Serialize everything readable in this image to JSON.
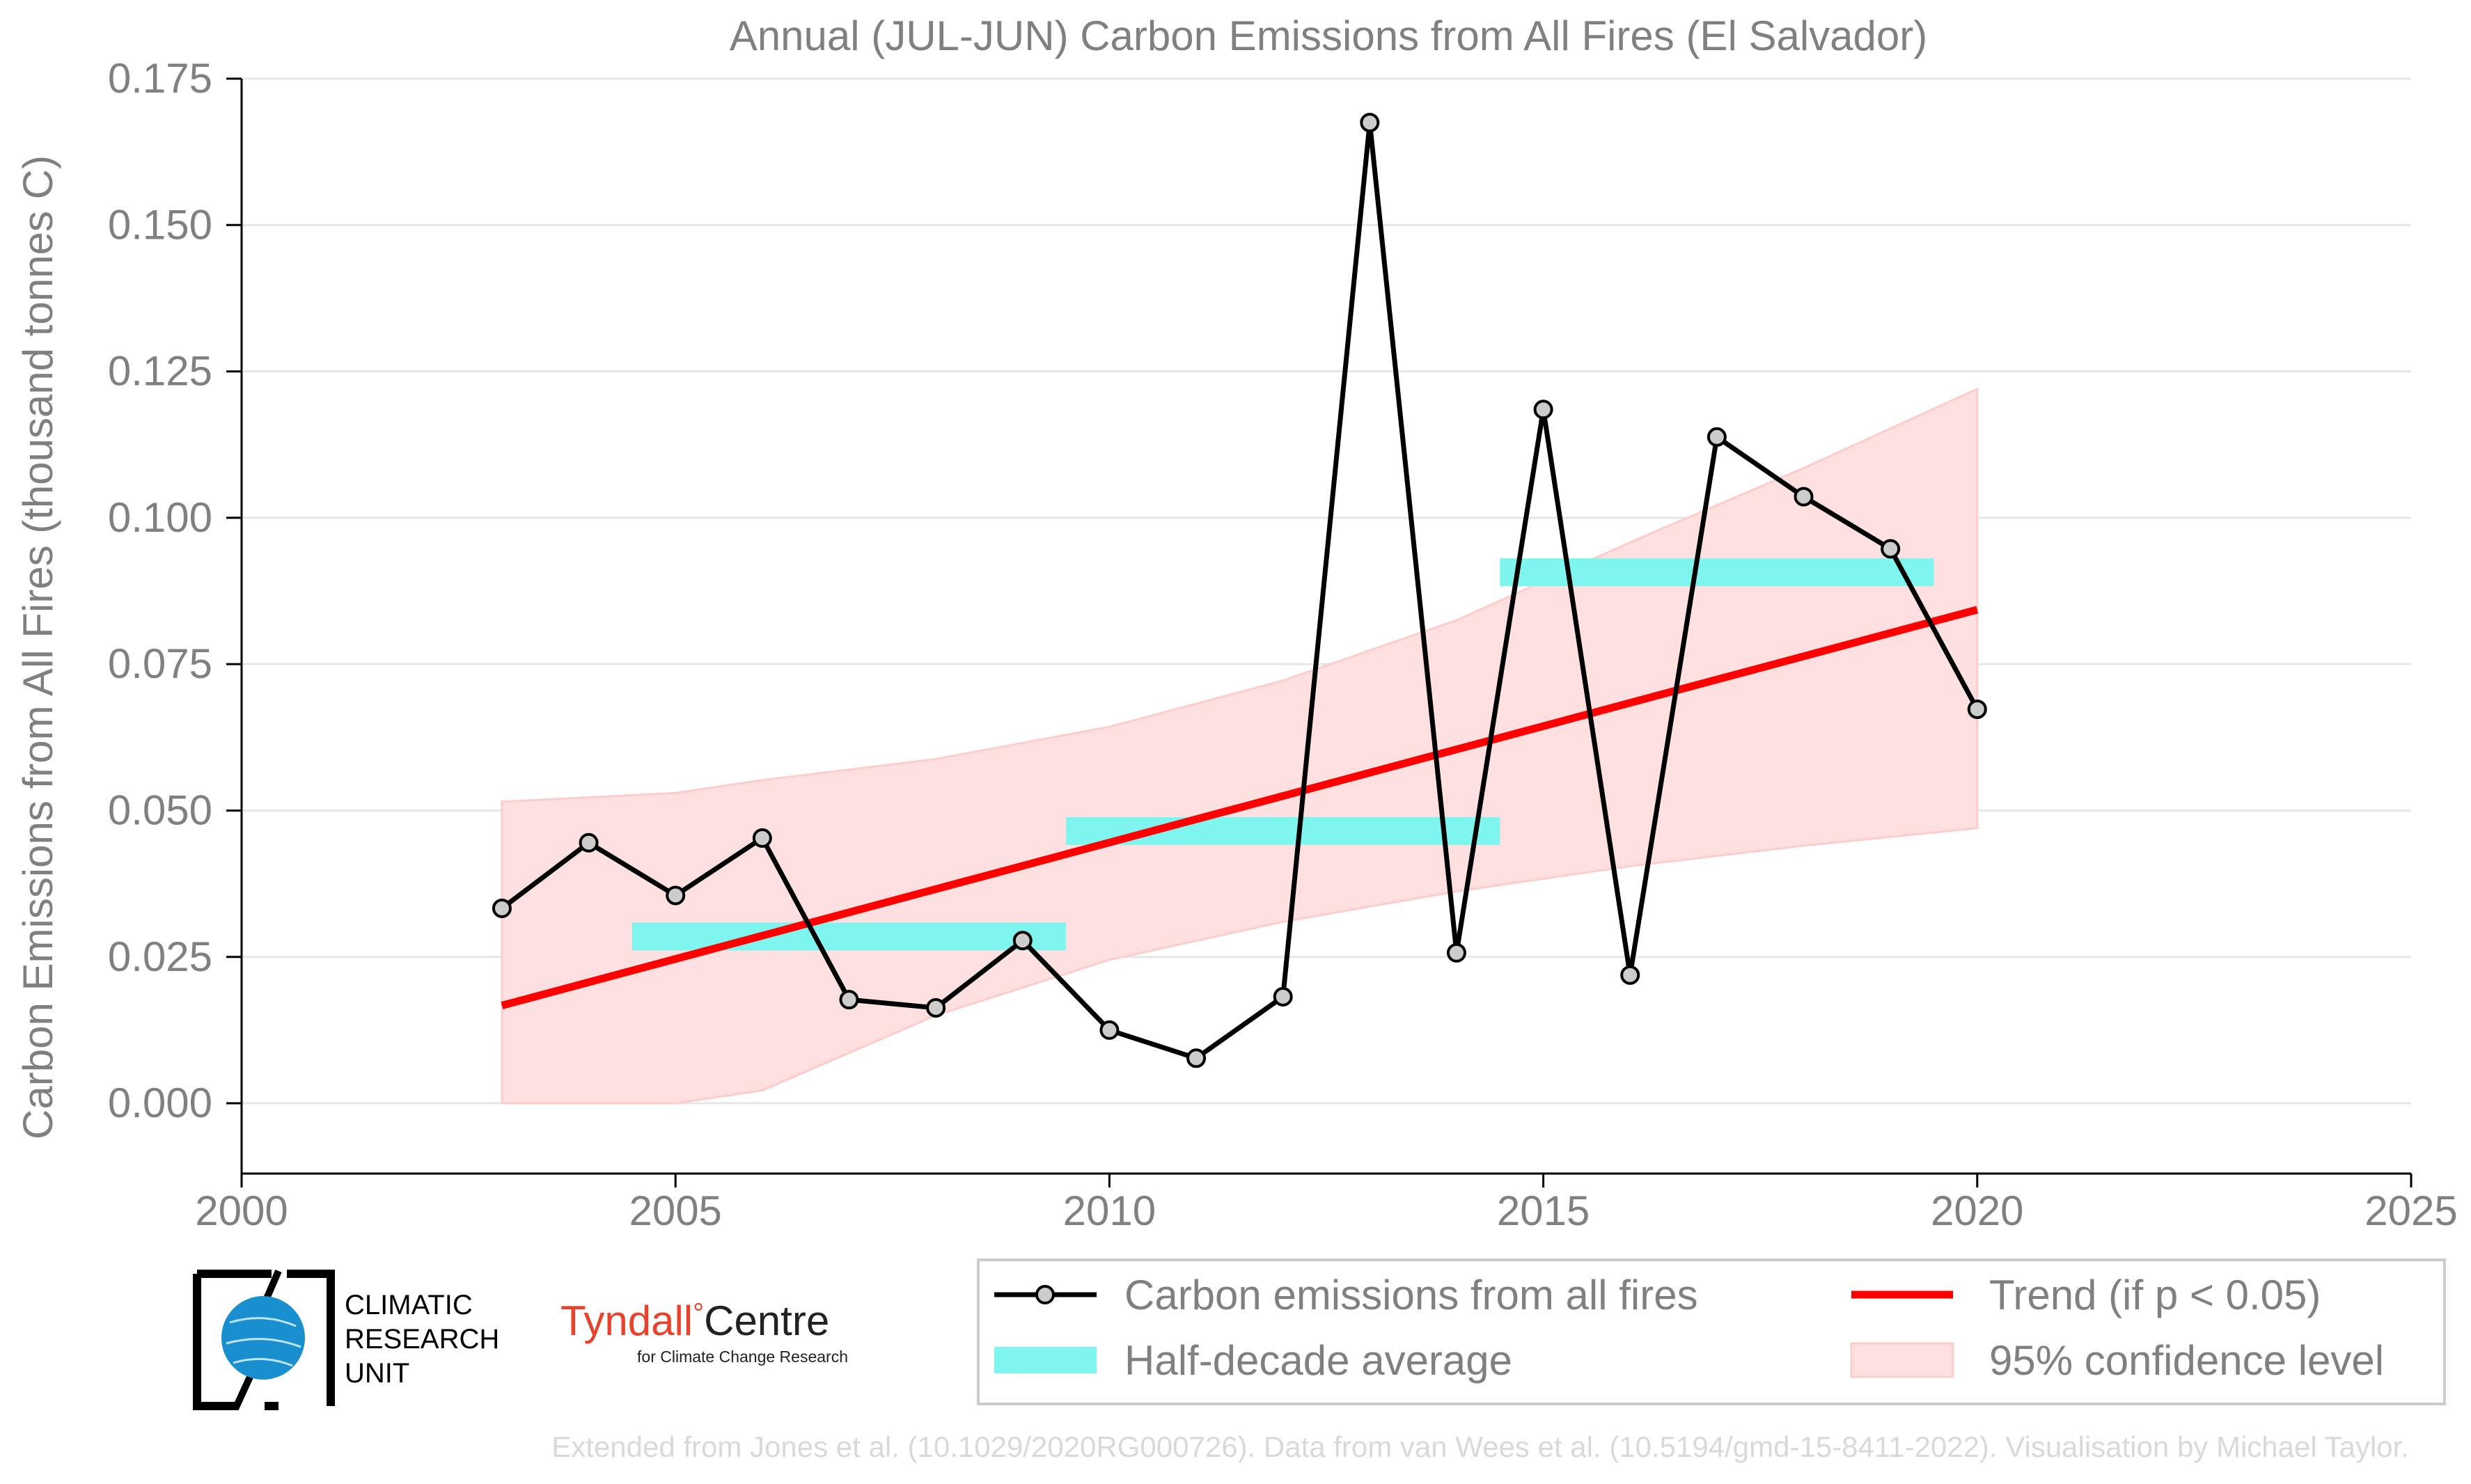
{
  "chart_data": {
    "type": "line",
    "title": "Annual (JUL-JUN) Carbon Emissions from All Fires (El Salvador)",
    "xlabel": "",
    "ylabel": "Carbon Emissions from All Fires (thousand tonnes C)",
    "xlim": [
      2000,
      2025
    ],
    "ylim": [
      -0.012,
      0.175
    ],
    "xticks": [
      2000,
      2005,
      2010,
      2015,
      2020,
      2025
    ],
    "yticks": [
      0.0,
      0.025,
      0.05,
      0.075,
      0.1,
      0.125,
      0.15,
      0.175
    ],
    "xtick_labels": [
      "2000",
      "2005",
      "2010",
      "2015",
      "2020",
      "2025"
    ],
    "ytick_labels": [
      "0.000",
      "0.025",
      "0.050",
      "0.075",
      "0.100",
      "0.125",
      "0.150",
      "0.175"
    ],
    "grid": "horizontal",
    "series": [
      {
        "name": "Carbon emissions from all fires",
        "color": "#000000",
        "marker_fill": "#cccccc",
        "x": [
          2003,
          2004,
          2005,
          2006,
          2007,
          2008,
          2009,
          2010,
          2011,
          2012,
          2013,
          2014,
          2015,
          2016,
          2017,
          2018,
          2019,
          2020
        ],
        "y": [
          0.0333,
          0.0445,
          0.0355,
          0.0453,
          0.0177,
          0.0163,
          0.0278,
          0.0125,
          0.0077,
          0.0182,
          0.1675,
          0.0257,
          0.1185,
          0.0219,
          0.1138,
          0.1036,
          0.0947,
          0.0673
        ]
      },
      {
        "name": "Half-decade average",
        "color": "#7ff5f0",
        "segments": [
          {
            "x0": 2004.5,
            "x1": 2009.5,
            "y": 0.0285
          },
          {
            "x0": 2009.5,
            "x1": 2014.5,
            "y": 0.0465
          },
          {
            "x0": 2014.5,
            "x1": 2019.5,
            "y": 0.0907
          }
        ]
      },
      {
        "name": "Trend (if p < 0.05)",
        "color": "#ff0000",
        "x": [
          2003,
          2020
        ],
        "y": [
          0.0167,
          0.0843
        ]
      },
      {
        "name": "95% confidence level",
        "color": "#ffe0e0",
        "x": [
          2003,
          2005,
          2006,
          2008,
          2010,
          2012,
          2014,
          2016,
          2018,
          2020
        ],
        "upper": [
          0.0515,
          0.053,
          0.0552,
          0.0588,
          0.0643,
          0.0722,
          0.0825,
          0.0958,
          0.1085,
          0.122
        ],
        "lower": [
          0.0,
          0.0,
          0.0022,
          0.015,
          0.0245,
          0.031,
          0.0362,
          0.0405,
          0.044,
          0.047
        ]
      }
    ],
    "legend_position": "bottom-right"
  },
  "logos": {
    "cru": [
      "CLIMATIC",
      "RESEARCH",
      "UNIT"
    ],
    "tyndall_main": "Tyndall",
    "tyndall_degree": "°",
    "tyndall_centre": "Centre",
    "tyndall_sub": "for Climate Change Research"
  },
  "credit": "Extended from Jones et al. (10.1029/2020RG000726). Data from van Wees et al. (10.5194/gmd-15-8411-2022). Visualisation by Michael Taylor.",
  "colors": {
    "text": "#808080",
    "grid": "#e6e6e6",
    "axis": "#000000",
    "credit": "#d9d9d9",
    "tyndall_red": "#e8412c"
  }
}
